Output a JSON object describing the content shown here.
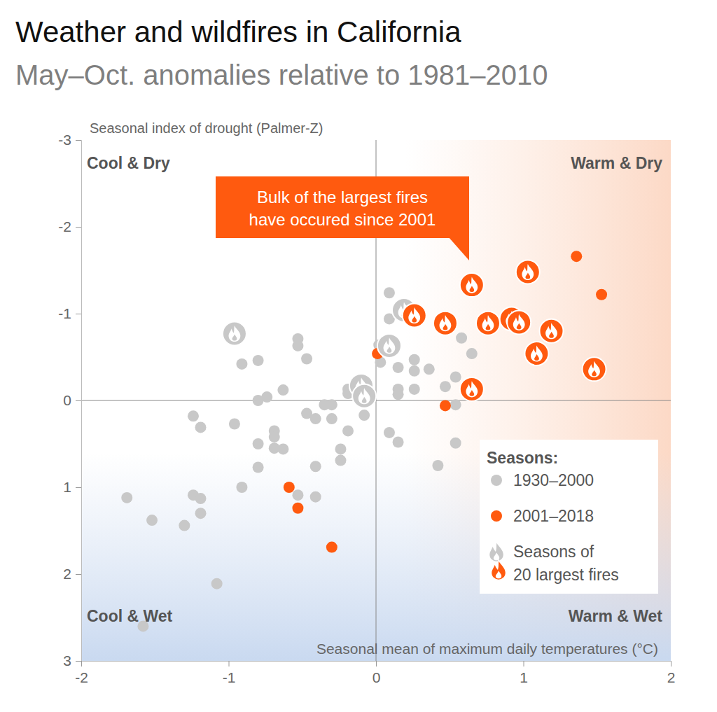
{
  "chart_data": {
    "type": "scatter",
    "title": "Weather and wildfires in California",
    "subtitle": "May–Oct. anomalies relative to 1981–2010",
    "x_label": "Seasonal mean of maximum daily temperatures (°C)",
    "y_label": "Seasonal index of drought (Palmer-Z)",
    "quadrant_labels": [
      "Cool & Dry",
      "Warm & Dry",
      "Cool & Wet",
      "Warm & Wet"
    ],
    "annotation": [
      "Bulk of the largest fires",
      "have occured since 2001"
    ],
    "legend": "bottom-right",
    "legend_title": "Seasons:",
    "fire_label": [
      "Seasons of",
      "20 largest fires"
    ],
    "xlim": [
      -2,
      2
    ],
    "xticks": [
      -2,
      -1,
      0,
      1,
      2
    ],
    "ylim": [
      -3,
      3
    ],
    "yticks": [
      -3,
      -2,
      -1,
      0,
      1,
      2,
      3
    ],
    "series": [
      {
        "name": "1930–2000",
        "color": "#c8c8c8",
        "marker": "circle",
        "x": [
          -1.69,
          -1.52,
          -1.3,
          -1.24,
          -1.24,
          -1.19,
          -1.19,
          -1.19,
          -1.08,
          -1.58,
          -0.96,
          -0.91,
          -0.91,
          -0.8,
          -0.8,
          -0.8,
          -0.8,
          -0.74,
          -0.69,
          -0.69,
          -0.69,
          -0.63,
          -0.63,
          -0.53,
          -0.53,
          -0.53,
          -0.47,
          -0.47,
          -0.41,
          -0.41,
          -0.41,
          -0.35,
          -0.3,
          -0.3,
          -0.24,
          -0.24,
          -0.19,
          -0.19,
          -0.19,
          -0.08,
          0.02,
          0.03,
          0.09,
          0.09,
          0.09,
          0.15,
          0.15,
          0.15,
          0.15,
          0.26,
          0.26,
          0.26,
          0.36,
          0.47,
          0.54,
          0.54,
          0.54,
          0.58,
          0.65,
          0.42,
          -0.96,
          0.19,
          0.09,
          -0.1,
          -0.08
        ],
        "values": [
          1.12,
          1.38,
          1.44,
          0.18,
          1.09,
          0.31,
          1.13,
          1.3,
          2.11,
          2.6,
          0.27,
          -0.42,
          1.0,
          -0.46,
          0.0,
          0.5,
          0.77,
          -0.04,
          0.35,
          0.42,
          0.55,
          -0.12,
          0.56,
          -0.71,
          -0.63,
          1.09,
          -0.48,
          0.15,
          0.21,
          0.76,
          1.11,
          0.05,
          0.05,
          0.21,
          0.56,
          0.69,
          0.35,
          -0.13,
          -0.08,
          0.17,
          -0.64,
          -0.44,
          -1.24,
          -0.94,
          0.37,
          -0.38,
          -0.13,
          -0.07,
          0.48,
          -0.47,
          -0.34,
          -0.13,
          -0.36,
          -0.16,
          -0.27,
          0.05,
          0.49,
          -0.72,
          -0.54,
          0.75,
          -0.77,
          -1.04,
          -0.63,
          -0.17,
          -0.05
        ],
        "largest_fire": [
          false,
          false,
          false,
          false,
          false,
          false,
          false,
          false,
          false,
          false,
          false,
          false,
          false,
          false,
          false,
          false,
          false,
          false,
          false,
          false,
          false,
          false,
          false,
          false,
          false,
          false,
          false,
          false,
          false,
          false,
          false,
          false,
          false,
          false,
          false,
          false,
          false,
          false,
          false,
          false,
          false,
          false,
          false,
          false,
          false,
          false,
          false,
          false,
          false,
          false,
          false,
          false,
          false,
          false,
          false,
          false,
          false,
          false,
          false,
          false,
          true,
          true,
          true,
          true,
          true
        ]
      },
      {
        "name": "2001–2018",
        "color": "#ff5a0f",
        "marker": "circle",
        "x": [
          1.36,
          1.53,
          0.01,
          0.47,
          -0.59,
          -0.53,
          -0.3,
          0.65,
          0.26,
          0.47,
          0.76,
          0.92,
          0.97,
          1.03,
          1.09,
          1.19,
          1.48,
          0.65
        ],
        "values": [
          -1.66,
          -1.22,
          -0.54,
          0.06,
          1.0,
          1.24,
          1.69,
          -1.33,
          -0.98,
          -0.89,
          -0.89,
          -0.94,
          -0.9,
          -1.48,
          -0.54,
          -0.8,
          -0.36,
          -0.13
        ],
        "largest_fire": [
          false,
          false,
          false,
          false,
          false,
          false,
          false,
          true,
          true,
          true,
          true,
          true,
          true,
          true,
          true,
          true,
          true,
          true
        ]
      }
    ]
  }
}
